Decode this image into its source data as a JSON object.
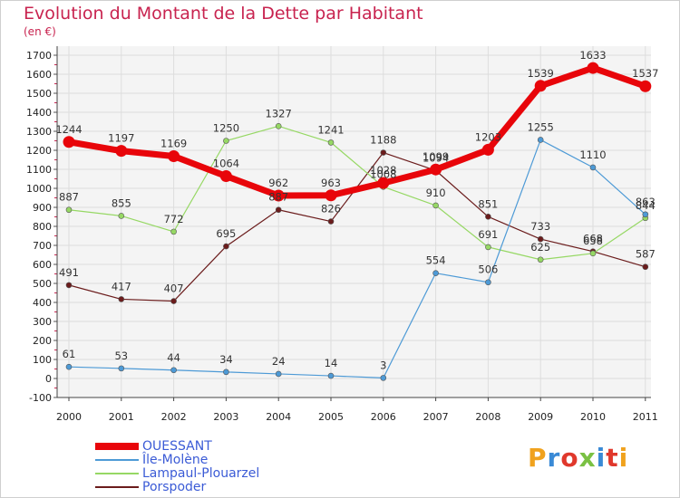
{
  "title": "Evolution du Montant de la Dette par Habitant",
  "subtitle": "(en €)",
  "brand": "Proxiti",
  "chart_data": {
    "type": "line",
    "title": "Evolution du Montant de la Dette par Habitant",
    "ylabel": "(en €)",
    "x": [
      "2000",
      "2001",
      "2002",
      "2003",
      "2004",
      "2005",
      "2006",
      "2007",
      "2008",
      "2009",
      "2010",
      "2011"
    ],
    "yticks": [
      -100,
      0,
      100,
      200,
      300,
      400,
      500,
      600,
      700,
      800,
      900,
      1000,
      1100,
      1200,
      1300,
      1400,
      1500,
      1600,
      1700
    ],
    "ylim": [
      -100,
      1700
    ],
    "grid": true,
    "legend_position": "bottom-left",
    "series": [
      {
        "name": "OUESSANT",
        "color": "#e8050a",
        "values": [
          1244,
          1197,
          1169,
          1064,
          962,
          963,
          1028,
          1099,
          1203,
          1539,
          1633,
          1537
        ]
      },
      {
        "name": "Île-Molène",
        "color": "#4d9ad6",
        "values": [
          61,
          53,
          44,
          34,
          24,
          14,
          3,
          554,
          506,
          1255,
          1110,
          863
        ]
      },
      {
        "name": "Lampaul-Plouarzel",
        "color": "#96d864",
        "values": [
          887,
          855,
          772,
          1250,
          1327,
          1241,
          1008,
          910,
          691,
          625,
          658,
          844
        ]
      },
      {
        "name": "Porspoder",
        "color": "#6b1c1c",
        "values": [
          491,
          417,
          407,
          695,
          887,
          826,
          1188,
          1094,
          851,
          733,
          668,
          587
        ]
      }
    ]
  }
}
